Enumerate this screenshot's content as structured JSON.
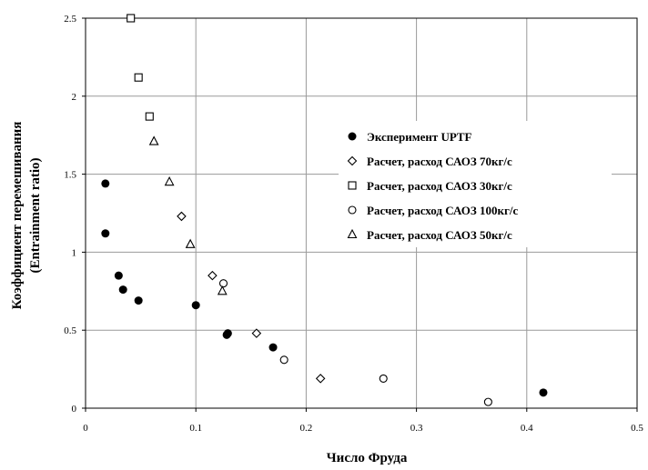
{
  "chart_data": {
    "type": "scatter",
    "xlabel": "Число Фруда",
    "ylabel": [
      "Коэффициент перемешивания",
      "(Entrainment ratio)"
    ],
    "xlim": [
      0,
      0.5
    ],
    "ylim": [
      0,
      2.5
    ],
    "xticks": [
      "0",
      "0.1",
      "0.2",
      "0.3",
      "0.4",
      "0.5"
    ],
    "xtick_values": [
      0,
      0.1,
      0.2,
      0.3,
      0.4,
      0.5
    ],
    "yticks": [
      "0",
      "0.5",
      "1",
      "1.5",
      "2",
      "2.5"
    ],
    "ytick_values": [
      0,
      0.5,
      1,
      1.5,
      2,
      2.5
    ],
    "grid": true,
    "legend_position": "center-right",
    "series": [
      {
        "name": "Эксперимент UPTF",
        "marker": "filled-circle",
        "x": [
          0.018,
          0.018,
          0.03,
          0.034,
          0.048,
          0.1,
          0.128,
          0.129,
          0.17,
          0.415
        ],
        "y": [
          1.44,
          1.12,
          0.85,
          0.76,
          0.69,
          0.66,
          0.47,
          0.48,
          0.39,
          0.1
        ]
      },
      {
        "name": "Расчет, расход САОЗ 70кг/с",
        "marker": "diamond",
        "x": [
          0.087,
          0.115,
          0.155,
          0.213
        ],
        "y": [
          1.23,
          0.85,
          0.48,
          0.19
        ]
      },
      {
        "name": "Расчет, расход САОЗ 30кг/с",
        "marker": "square",
        "x": [
          0.041,
          0.048,
          0.058
        ],
        "y": [
          2.5,
          2.12,
          1.87
        ]
      },
      {
        "name": "Расчет, расход САОЗ 100кг/с",
        "marker": "circle",
        "x": [
          0.125,
          0.18,
          0.27,
          0.365
        ],
        "y": [
          0.8,
          0.31,
          0.19,
          0.04
        ]
      },
      {
        "name": "Расчет, расход САОЗ 50кг/с",
        "marker": "triangle",
        "x": [
          0.062,
          0.076,
          0.095,
          0.124
        ],
        "y": [
          1.71,
          1.45,
          1.05,
          0.75
        ]
      }
    ]
  }
}
